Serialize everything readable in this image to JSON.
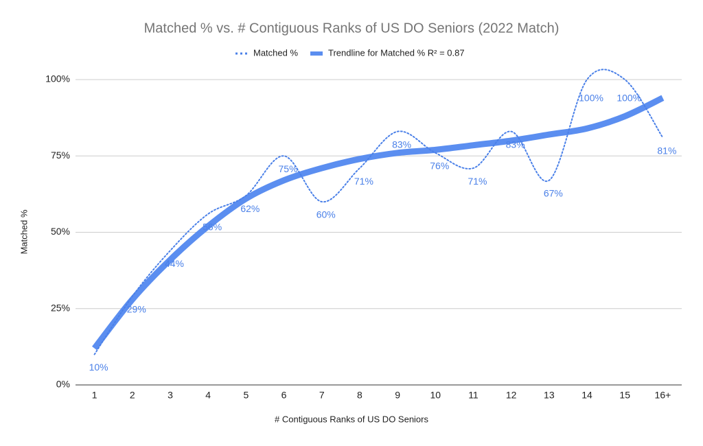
{
  "chart_data": {
    "type": "line",
    "title": "Matched % vs. # Contiguous Ranks of US DO Seniors (2022 Match)",
    "x_label": "# Contiguous Ranks of US DO Seniors",
    "y_label": "Matched %",
    "categories": [
      "1",
      "2",
      "3",
      "4",
      "5",
      "6",
      "7",
      "8",
      "9",
      "10",
      "11",
      "12",
      "13",
      "14",
      "15",
      "16+"
    ],
    "series": [
      {
        "name": "Matched %",
        "color": "#4a80e8",
        "style": "dotted",
        "values": [
          10,
          29,
          44,
          56,
          62,
          75,
          60,
          71,
          83,
          76,
          71,
          83,
          67,
          100,
          100,
          81
        ],
        "value_labels": [
          "10%",
          "29%",
          "44%",
          "56%",
          "62%",
          "75%",
          "60%",
          "71%",
          "83%",
          "76%",
          "71%",
          "83%",
          "67%",
          "100%",
          "100%",
          "81%"
        ]
      },
      {
        "name": "Trendline for Matched % R² = 0.87",
        "color": "#5b8ef0",
        "style": "thick",
        "values": [
          12,
          28,
          41,
          52,
          61,
          67,
          71,
          74,
          76,
          77,
          78.5,
          80,
          82,
          84,
          88,
          94
        ]
      }
    ],
    "ylim": [
      0,
      100
    ],
    "yticks": [
      {
        "value": 0,
        "label": "0%"
      },
      {
        "value": 25,
        "label": "25%"
      },
      {
        "value": 50,
        "label": "50%"
      },
      {
        "value": 75,
        "label": "75%"
      },
      {
        "value": 100,
        "label": "100%"
      }
    ],
    "grid": true,
    "legend": "top"
  }
}
